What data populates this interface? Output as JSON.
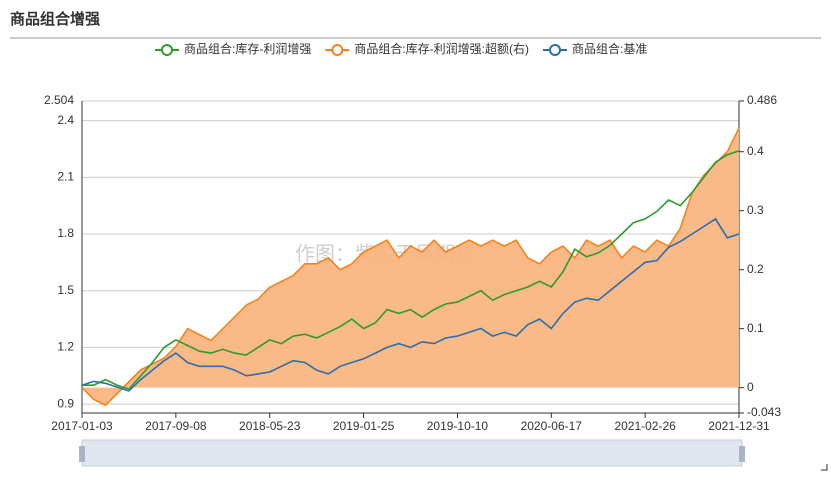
{
  "chart_data": {
    "type": "line",
    "title": "商品组合增强",
    "watermark": "作图：紫金天风期货",
    "categories": [
      "2017-01-03",
      null,
      null,
      null,
      null,
      null,
      null,
      null,
      "2017-09-08",
      null,
      null,
      null,
      null,
      null,
      null,
      null,
      "2018-05-23",
      null,
      null,
      null,
      null,
      null,
      null,
      null,
      "2019-01-25",
      null,
      null,
      null,
      null,
      null,
      null,
      null,
      "2019-10-10",
      null,
      null,
      null,
      null,
      null,
      null,
      null,
      "2020-06-17",
      null,
      null,
      null,
      null,
      null,
      null,
      null,
      "2021-02-26",
      null,
      null,
      null,
      null,
      null,
      null,
      null,
      "2021-12-31"
    ],
    "series": [
      {
        "name": "商品组合:库存-利润增强",
        "color": "#2e9b2e",
        "values": [
          1.0,
          1.0,
          1.03,
          1.0,
          0.98,
          1.05,
          1.12,
          1.2,
          1.24,
          1.21,
          1.18,
          1.17,
          1.19,
          1.17,
          1.16,
          1.2,
          1.24,
          1.22,
          1.26,
          1.27,
          1.25,
          1.28,
          1.31,
          1.35,
          1.3,
          1.33,
          1.4,
          1.38,
          1.4,
          1.36,
          1.4,
          1.43,
          1.44,
          1.47,
          1.5,
          1.45,
          1.48,
          1.5,
          1.52,
          1.55,
          1.52,
          1.6,
          1.72,
          1.68,
          1.7,
          1.74,
          1.8,
          1.86,
          1.88,
          1.92,
          1.98,
          1.95,
          2.02,
          2.1,
          2.18,
          2.22,
          2.24
        ]
      },
      {
        "name": "商品组合:库存-利润增强:超额(右)",
        "color": "#f5821f",
        "area": "#f9b27a",
        "axis": "y2",
        "values": [
          0.0,
          -0.02,
          -0.03,
          -0.01,
          0.01,
          0.03,
          0.04,
          0.05,
          0.07,
          0.1,
          0.09,
          0.08,
          0.1,
          0.12,
          0.14,
          0.15,
          0.17,
          0.18,
          0.19,
          0.21,
          0.21,
          0.22,
          0.2,
          0.21,
          0.23,
          0.24,
          0.25,
          0.22,
          0.24,
          0.23,
          0.25,
          0.23,
          0.24,
          0.25,
          0.24,
          0.25,
          0.24,
          0.25,
          0.22,
          0.21,
          0.23,
          0.24,
          0.22,
          0.25,
          0.24,
          0.25,
          0.22,
          0.24,
          0.23,
          0.25,
          0.24,
          0.27,
          0.33,
          0.36,
          0.38,
          0.4,
          0.44
        ]
      },
      {
        "name": "商品组合:基准",
        "color": "#2b6ead",
        "values": [
          1.0,
          1.02,
          1.01,
          0.99,
          0.97,
          1.03,
          1.08,
          1.13,
          1.17,
          1.12,
          1.1,
          1.1,
          1.1,
          1.08,
          1.05,
          1.06,
          1.07,
          1.1,
          1.13,
          1.12,
          1.08,
          1.06,
          1.1,
          1.12,
          1.14,
          1.17,
          1.2,
          1.22,
          1.2,
          1.23,
          1.22,
          1.25,
          1.26,
          1.28,
          1.3,
          1.26,
          1.28,
          1.26,
          1.32,
          1.35,
          1.3,
          1.38,
          1.44,
          1.46,
          1.45,
          1.5,
          1.55,
          1.6,
          1.65,
          1.66,
          1.73,
          1.76,
          1.8,
          1.84,
          1.88,
          1.78,
          1.8
        ]
      }
    ],
    "ylim": [
      0.853,
      2.504
    ],
    "yticks": [
      0.9,
      1.2,
      1.5,
      1.8,
      2.1,
      2.4,
      2.504
    ],
    "y2lim": [
      -0.043,
      0.486
    ],
    "y2ticks": [
      -0.043,
      0,
      0.1,
      0.2,
      0.3,
      0.4,
      0.486
    ],
    "grid": true
  }
}
